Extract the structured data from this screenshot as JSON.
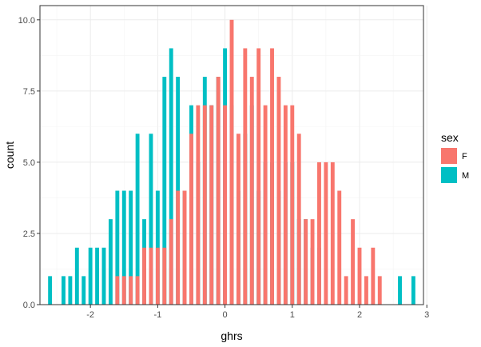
{
  "chart_data": {
    "type": "bar",
    "subtype": "histogram-overlapping",
    "xlabel": "ghrs",
    "ylabel": "count",
    "xlim": [
      -2.75,
      2.95
    ],
    "ylim": [
      0,
      10.5
    ],
    "xticks": [
      -2,
      -1,
      0,
      1,
      2,
      3
    ],
    "xtick_labels": [
      "-2",
      "-1",
      "0",
      "1",
      "2",
      "3"
    ],
    "yticks": [
      0,
      2.5,
      5,
      7.5,
      10
    ],
    "ytick_labels": [
      "0.0",
      "2.5",
      "5.0",
      "7.5",
      "10.0"
    ],
    "grid": true,
    "bin_width": 0.1,
    "legend": {
      "title": "sex",
      "position": "right",
      "entries": [
        {
          "label": "F",
          "color": "#F8766D"
        },
        {
          "label": "M",
          "color": "#00BFC4"
        }
      ]
    },
    "series": [
      {
        "name": "F",
        "color": "#F8766D",
        "x": [
          -1.6,
          -1.5,
          -1.4,
          -1.3,
          -1.2,
          -1.1,
          -1.0,
          -0.9,
          -0.8,
          -0.7,
          -0.6,
          -0.5,
          -0.4,
          -0.3,
          -0.2,
          -0.1,
          0.0,
          0.1,
          0.2,
          0.3,
          0.4,
          0.5,
          0.6,
          0.7,
          0.8,
          0.9,
          1.0,
          1.1,
          1.2,
          1.3,
          1.4,
          1.5,
          1.6,
          1.7,
          1.8,
          1.9,
          2.0,
          2.1,
          2.2,
          2.3
        ],
        "values": [
          1,
          1,
          1,
          1,
          2,
          2,
          2,
          2,
          3,
          4,
          4,
          6,
          7,
          7,
          7,
          8,
          7,
          10,
          6,
          9,
          8,
          9,
          7,
          9,
          8,
          7,
          7,
          6,
          3,
          3,
          5,
          5,
          5,
          4,
          1,
          3,
          2,
          1,
          2,
          1
        ]
      },
      {
        "name": "M",
        "color": "#00BFC4",
        "x": [
          -2.6,
          -2.4,
          -2.3,
          -2.2,
          -2.1,
          -2.0,
          -1.9,
          -1.8,
          -1.7,
          -1.6,
          -1.5,
          -1.4,
          -1.3,
          -1.2,
          -1.1,
          -1.0,
          -0.9,
          -0.8,
          -0.7,
          -0.6,
          -0.5,
          -0.4,
          -0.3,
          -0.2,
          -0.1,
          0.0,
          0.1,
          0.2,
          0.3,
          0.4,
          0.5,
          0.6,
          0.7,
          0.8,
          0.9,
          1.0,
          1.1,
          1.2,
          1.3,
          1.4,
          2.6,
          2.8
        ],
        "values": [
          1,
          1,
          1,
          2,
          1,
          2,
          2,
          2,
          3,
          4,
          4,
          4,
          6,
          3,
          6,
          4,
          8,
          9,
          8,
          4,
          7,
          5,
          8,
          7,
          8,
          9,
          7,
          4,
          6,
          7,
          4,
          5,
          5,
          4,
          5,
          5,
          3,
          3,
          2,
          2,
          1,
          1
        ]
      }
    ]
  }
}
